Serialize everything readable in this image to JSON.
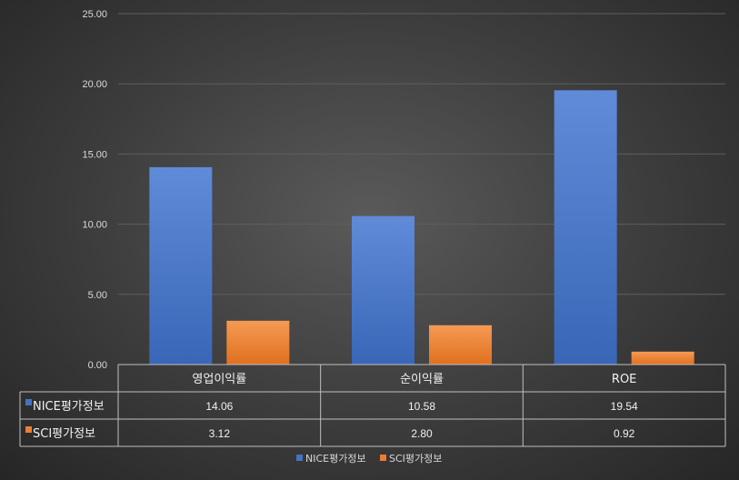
{
  "chart_data": {
    "type": "bar",
    "categories": [
      "영업이익률",
      "순이익률",
      "ROE"
    ],
    "series": [
      {
        "name": "NICE평가정보",
        "values": [
          14.06,
          10.58,
          19.54
        ],
        "color": "#4472c4"
      },
      {
        "name": "SCI평가정보",
        "values": [
          3.12,
          2.8,
          0.92
        ],
        "color": "#ed7d31"
      }
    ],
    "table_values": [
      [
        "14.06",
        "10.58",
        "19.54"
      ],
      [
        "3.12",
        "2.80",
        "0.92"
      ]
    ],
    "y_ticks": [
      "0.00",
      "5.00",
      "10.00",
      "15.00",
      "20.00",
      "25.00"
    ],
    "ylim": [
      0,
      25
    ],
    "grid": true,
    "legend": "bottom",
    "data_table": true
  }
}
